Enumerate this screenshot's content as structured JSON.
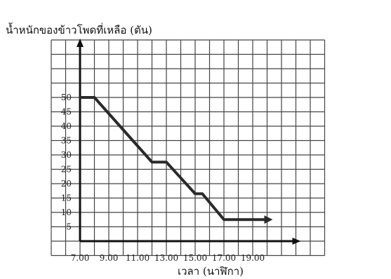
{
  "chart_data": {
    "type": "line",
    "ylabel": "น้ำหนักของข้าวโพดที่เหลือ (ตัน)",
    "xlabel": "เวลา (นาฬิกา)",
    "x_tick_labels": [
      "7.00",
      "9.00",
      "11.00",
      "13.00",
      "15.00",
      "17.00",
      "19.00"
    ],
    "y_tick_labels": [
      "5",
      "10",
      "15",
      "20",
      "25",
      "30",
      "35",
      "40",
      "45",
      "50"
    ],
    "x_hours": [
      7,
      9,
      11,
      13,
      15,
      17,
      19
    ],
    "xlim": [
      7,
      20
    ],
    "ylim": [
      0,
      50
    ],
    "grid": true,
    "series": [
      {
        "x": [
          "7.00",
          "8.00",
          "12.00",
          "13.00",
          "15.00",
          "15.30",
          "17.00",
          "20.00"
        ],
        "y": [
          50,
          50,
          27.5,
          27.5,
          16.5,
          16.5,
          7.5,
          7.5
        ]
      }
    ],
    "line_color": "#2a2a2a"
  }
}
